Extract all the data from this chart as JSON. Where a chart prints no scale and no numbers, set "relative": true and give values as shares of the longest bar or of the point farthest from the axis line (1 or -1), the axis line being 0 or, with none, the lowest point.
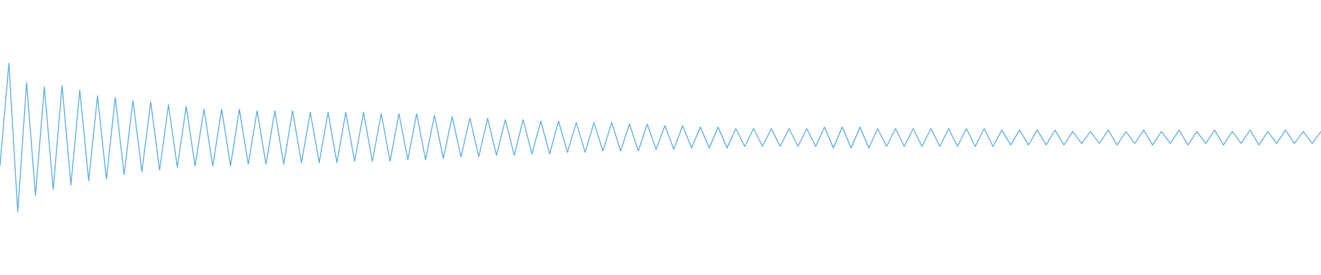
{
  "chart_data": {
    "type": "line",
    "relative": true,
    "color": "#5dade2",
    "categories": [
      null,
      null,
      null,
      null,
      null,
      null,
      null,
      null,
      null,
      null,
      null,
      null,
      null,
      null,
      null,
      null,
      null,
      null,
      null,
      null,
      null,
      null,
      null,
      null,
      null,
      null,
      null,
      null,
      null,
      null,
      null,
      null,
      null,
      null,
      null,
      null,
      null,
      null,
      null,
      null,
      null,
      null,
      null,
      null,
      null,
      null,
      null,
      null,
      null,
      null,
      null,
      null,
      null,
      null,
      null,
      null,
      null,
      null,
      null,
      null,
      null,
      null,
      null,
      null,
      null,
      null,
      null,
      null,
      null,
      null,
      null,
      null,
      null,
      null,
      null,
      null,
      null,
      null,
      null,
      null,
      null,
      null,
      null,
      null,
      null,
      null,
      null,
      null,
      null,
      null,
      null,
      null,
      null,
      null,
      null,
      null,
      null,
      null,
      null,
      null,
      null,
      null,
      null,
      null,
      null,
      null,
      null,
      null,
      null,
      null,
      null,
      null,
      null,
      null,
      null,
      null,
      null,
      null,
      null,
      null,
      null,
      null,
      null,
      null,
      null,
      null,
      null,
      null,
      null,
      null,
      null,
      null,
      null,
      null,
      null,
      null,
      null,
      null,
      null,
      null,
      null,
      null,
      null,
      null,
      null,
      null,
      null,
      null,
      null,
      null
    ],
    "values": [
      0.31,
      1.0,
      0.0,
      0.87,
      0.11,
      0.84,
      0.15,
      0.85,
      0.18,
      0.82,
      0.21,
      0.78,
      0.22,
      0.77,
      0.25,
      0.75,
      0.27,
      0.74,
      0.28,
      0.72,
      0.3,
      0.71,
      0.31,
      0.69,
      0.31,
      0.69,
      0.31,
      0.69,
      0.32,
      0.68,
      0.32,
      0.68,
      0.32,
      0.68,
      0.33,
      0.67,
      0.33,
      0.67,
      0.33,
      0.67,
      0.34,
      0.67,
      0.34,
      0.66,
      0.34,
      0.66,
      0.35,
      0.66,
      0.35,
      0.65,
      0.36,
      0.64,
      0.37,
      0.63,
      0.37,
      0.63,
      0.38,
      0.62,
      0.38,
      0.62,
      0.39,
      0.61,
      0.39,
      0.61,
      0.4,
      0.6,
      0.4,
      0.6,
      0.41,
      0.6,
      0.41,
      0.59,
      0.41,
      0.59,
      0.42,
      0.58,
      0.42,
      0.58,
      0.43,
      0.57,
      0.43,
      0.57,
      0.43,
      0.56,
      0.44,
      0.56,
      0.44,
      0.56,
      0.44,
      0.56,
      0.44,
      0.56,
      0.44,
      0.57,
      0.43,
      0.57,
      0.43,
      0.57,
      0.43,
      0.56,
      0.44,
      0.56,
      0.44,
      0.56,
      0.44,
      0.56,
      0.44,
      0.56,
      0.44,
      0.56,
      0.44,
      0.56,
      0.44,
      0.55,
      0.45,
      0.55,
      0.45,
      0.55,
      0.45,
      0.55,
      0.45,
      0.54,
      0.46,
      0.54,
      0.46,
      0.55,
      0.45,
      0.54,
      0.46,
      0.55,
      0.45,
      0.54,
      0.46,
      0.55,
      0.45,
      0.54,
      0.46,
      0.55,
      0.45,
      0.54,
      0.46,
      0.55,
      0.45,
      0.54,
      0.46,
      0.55,
      0.46,
      0.54,
      0.46,
      0.54
    ]
  }
}
